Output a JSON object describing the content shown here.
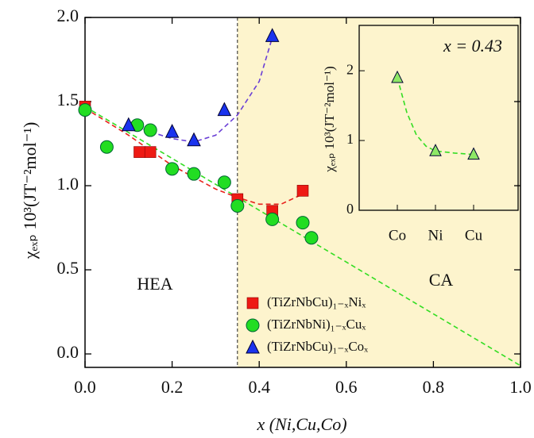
{
  "chart_data": [
    {
      "type": "scatter",
      "x_label": "x (Ni,Cu,Co)",
      "y_label": "χₑₓₚ 10³(JT⁻²mol⁻¹)",
      "annotations": [
        "HEA",
        "CA"
      ],
      "span": {
        "x": [
          0.35,
          1.0
        ],
        "color": "#fdf4cd"
      },
      "xlim": [
        0,
        1.0
      ],
      "ylim": [
        -0.08,
        2.0
      ],
      "xticks": [
        {
          "value": 0,
          "label": "0.0"
        },
        0.2,
        0.4,
        0.6,
        0.8,
        {
          "value": 1.0,
          "label": "1.0"
        }
      ],
      "yticks": [
        {
          "value": 0,
          "label": "0.0"
        },
        0.5,
        {
          "value": 1.0,
          "label": "1.0"
        },
        1.5,
        {
          "value": 2.0,
          "label": "2.0"
        }
      ],
      "legend": "lower center",
      "series": [
        {
          "name": "(TiZrNbCu)₁₋ₓNiₓ",
          "color": "#ee1a14",
          "marker": "square",
          "x": [
            0,
            0.125,
            0.15,
            0.35,
            0.43,
            0.5
          ],
          "values": [
            1.47,
            1.2,
            1.2,
            0.92,
            0.85,
            0.97
          ]
        },
        {
          "name": "(TiZrNbNi)₁₋ₓCuₓ",
          "color": "#22dd22",
          "marker": "circle",
          "x": [
            0,
            0.05,
            0.12,
            0.15,
            0.2,
            0.25,
            0.32,
            0.35,
            0.43,
            0.5,
            0.52
          ],
          "values": [
            1.45,
            1.23,
            1.36,
            1.33,
            1.1,
            1.07,
            1.02,
            0.88,
            0.8,
            0.78,
            0.69
          ]
        },
        {
          "name": "(TiZrNbCu)₁₋ₓCoₓ",
          "color": "#1a33ee",
          "marker": "triangle",
          "x": [
            0.1,
            0.2,
            0.25,
            0.32,
            0.43
          ],
          "values": [
            1.36,
            1.32,
            1.27,
            1.45,
            1.89
          ]
        }
      ],
      "fits": [
        {
          "color": "#e8221c",
          "x": [
            0,
            0.1,
            0.2,
            0.3,
            0.35,
            0.4,
            0.45,
            0.5
          ],
          "y": [
            1.46,
            1.3,
            1.12,
            0.98,
            0.93,
            0.89,
            0.89,
            0.95
          ]
        },
        {
          "color": "#6a3fd6",
          "x": [
            0.1,
            0.15,
            0.2,
            0.25,
            0.3,
            0.35,
            0.4,
            0.43
          ],
          "y": [
            1.37,
            1.32,
            1.28,
            1.26,
            1.3,
            1.42,
            1.62,
            1.88
          ]
        },
        {
          "color": "#33dd22",
          "x": [
            0,
            1.0
          ],
          "y": [
            1.47,
            -0.07
          ]
        }
      ]
    },
    {
      "type": "line",
      "title": "x = 0.43",
      "y_label": "χₑₓₚ 10³(JT⁻²mol⁻¹)",
      "categories": [
        "Co",
        "Ni",
        "Cu"
      ],
      "values": [
        1.9,
        0.85,
        0.8
      ],
      "color": "#8ee866",
      "ylim": [
        0,
        2.65
      ],
      "yticks": [
        0,
        1,
        2
      ],
      "fit": {
        "color": "#33dd22",
        "x": [
          0,
          0.25,
          0.5,
          0.75,
          1,
          1.5,
          2
        ],
        "y": [
          1.9,
          1.4,
          1.08,
          0.92,
          0.85,
          0.82,
          0.8
        ]
      }
    }
  ]
}
